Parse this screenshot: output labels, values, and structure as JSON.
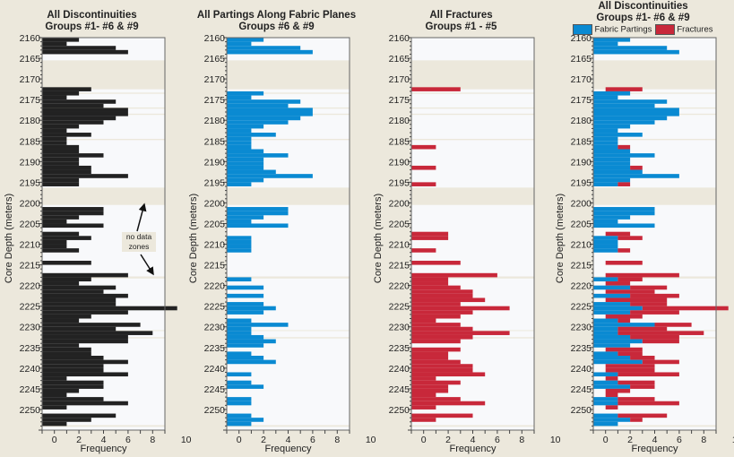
{
  "colors": {
    "fabric": "#0a8ad2",
    "fracture": "#c8283a",
    "all": "#222222",
    "nodata": "#ece8dc",
    "plotbg": "#f8f9fb"
  },
  "panels": [
    {
      "title_line1": "All Discontinuities",
      "title_line2": "Groups #1- #6 & #9",
      "mode": "all",
      "show_ylabel": true
    },
    {
      "title_line1": "All Partings Along Fabric  Planes",
      "title_line2": "Groups #6 & #9",
      "mode": "fabric",
      "show_ylabel": true
    },
    {
      "title_line1": "All Fractures",
      "title_line2": "Groups #1 - #5",
      "mode": "fracture",
      "show_ylabel": true
    },
    {
      "title_line1": "All Discontinuities",
      "title_line2": "Groups #1- #6 & #9",
      "mode": "stacked",
      "show_ylabel": true
    }
  ],
  "legend": {
    "fabric_label": "Fabric Partings",
    "fracture_label": "Fractures"
  },
  "annotation": {
    "line1": "no data",
    "line2": "zones"
  },
  "chart_data": {
    "type": "bar",
    "orientation": "horizontal",
    "xlabel": "Frequency",
    "ylabel": "Core Depth (meters)",
    "xlim": [
      -1,
      9
    ],
    "xticks": [
      0,
      2,
      4,
      6,
      8,
      10
    ],
    "ylim": [
      2160,
      2255
    ],
    "yticks": [
      2160,
      2165,
      2170,
      2175,
      2180,
      2185,
      2190,
      2195,
      2200,
      2205,
      2210,
      2215,
      2220,
      2225,
      2230,
      2235,
      2240,
      2245,
      2250
    ],
    "bin_size_m": 1,
    "no_data_zones": [
      [
        2165.5,
        2172.5
      ],
      [
        2173.3,
        2173.6
      ],
      [
        2176.9,
        2177.2
      ],
      [
        2178.4,
        2178.7
      ],
      [
        2184.5,
        2184.8
      ],
      [
        2196.3,
        2200.5
      ],
      [
        2217.8,
        2218.3
      ],
      [
        2230.8,
        2231.0
      ],
      [
        2232.5,
        2232.8
      ],
      [
        2253.8,
        2254.2
      ]
    ],
    "depth_bins": [
      2160,
      2161,
      2162,
      2163,
      2164,
      2165,
      2172,
      2173,
      2174,
      2175,
      2176,
      2177,
      2178,
      2179,
      2180,
      2181,
      2182,
      2183,
      2184,
      2185,
      2186,
      2187,
      2188,
      2189,
      2190,
      2191,
      2192,
      2193,
      2194,
      2195,
      2201,
      2202,
      2203,
      2204,
      2205,
      2206,
      2207,
      2208,
      2209,
      2210,
      2211,
      2212,
      2213,
      2214,
      2215,
      2216,
      2217,
      2218,
      2219,
      2220,
      2221,
      2222,
      2223,
      2224,
      2225,
      2226,
      2227,
      2228,
      2229,
      2230,
      2231,
      2232,
      2233,
      2234,
      2235,
      2236,
      2237,
      2238,
      2239,
      2240,
      2241,
      2242,
      2243,
      2244,
      2245,
      2246,
      2247,
      2248,
      2249,
      2250,
      2251,
      2252,
      2253
    ],
    "series": [
      {
        "name": "Fabric Partings",
        "values": [
          2,
          1,
          5,
          6,
          0,
          0,
          0,
          2,
          1,
          5,
          4,
          6,
          6,
          5,
          4,
          2,
          1,
          3,
          1,
          1,
          1,
          2,
          4,
          2,
          2,
          2,
          3,
          6,
          2,
          1,
          4,
          4,
          2,
          1,
          4,
          0,
          0,
          1,
          1,
          1,
          1,
          0,
          0,
          0,
          0,
          0,
          0,
          1,
          0,
          2,
          0,
          2,
          0,
          2,
          3,
          2,
          0,
          1,
          4,
          1,
          1,
          2,
          3,
          2,
          0,
          1,
          2,
          3,
          0,
          0,
          1,
          0,
          1,
          2,
          0,
          0,
          1,
          1,
          0,
          0,
          1,
          2,
          1
        ]
      },
      {
        "name": "Fractures",
        "values": [
          0,
          0,
          0,
          0,
          0,
          0,
          3,
          0,
          0,
          0,
          0,
          0,
          0,
          0,
          0,
          0,
          0,
          0,
          0,
          0,
          1,
          0,
          0,
          0,
          0,
          1,
          0,
          0,
          0,
          1,
          0,
          0,
          0,
          0,
          0,
          0,
          2,
          2,
          0,
          0,
          1,
          0,
          0,
          3,
          0,
          0,
          6,
          2,
          2,
          3,
          4,
          4,
          5,
          3,
          7,
          4,
          3,
          1,
          3,
          4,
          7,
          4,
          3,
          0,
          3,
          2,
          2,
          3,
          4,
          4,
          5,
          1,
          3,
          2,
          2,
          1,
          3,
          5,
          1,
          0,
          4,
          1,
          0
        ]
      }
    ]
  }
}
